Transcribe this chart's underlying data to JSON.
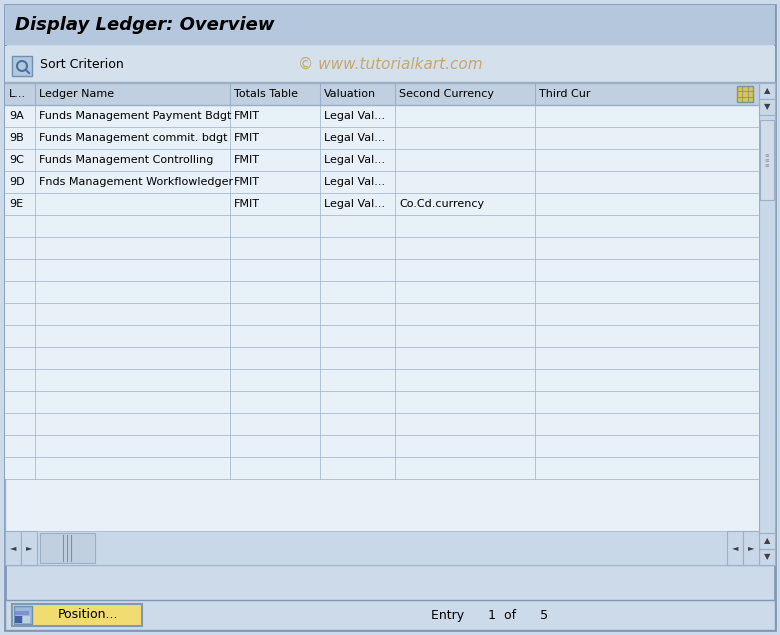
{
  "title": "Display Ledger: Overview",
  "watermark": "© www.tutorialkart.com",
  "toolbar_label": "Sort Criterion",
  "col_headers": [
    "L...",
    "Ledger Name",
    "Totals Table",
    "Valuation",
    "Second Currency",
    "Third Cur"
  ],
  "rows": [
    [
      "9A",
      "Funds Management Payment Bdgt",
      "FMIT",
      "Legal Val...",
      "",
      ""
    ],
    [
      "9B",
      "Funds Management commit. bdgt",
      "FMIT",
      "Legal Val...",
      "",
      ""
    ],
    [
      "9C",
      "Funds Management Controlling",
      "FMIT",
      "Legal Val...",
      "",
      ""
    ],
    [
      "9D",
      "Fnds Management Workflowledger",
      "FMIT",
      "Legal Val...",
      "",
      ""
    ],
    [
      "9E",
      "",
      "FMIT",
      "Legal Val...",
      "Co.Cd.currency",
      ""
    ],
    [
      "",
      "",
      "",
      "",
      "",
      ""
    ],
    [
      "",
      "",
      "",
      "",
      "",
      ""
    ],
    [
      "",
      "",
      "",
      "",
      "",
      ""
    ],
    [
      "",
      "",
      "",
      "",
      "",
      ""
    ],
    [
      "",
      "",
      "",
      "",
      "",
      ""
    ],
    [
      "",
      "",
      "",
      "",
      "",
      ""
    ],
    [
      "",
      "",
      "",
      "",
      "",
      ""
    ],
    [
      "",
      "",
      "",
      "",
      "",
      ""
    ],
    [
      "",
      "",
      "",
      "",
      "",
      ""
    ],
    [
      "",
      "",
      "",
      "",
      "",
      ""
    ],
    [
      "",
      "",
      "",
      "",
      "",
      ""
    ],
    [
      "",
      "",
      "",
      "",
      "",
      ""
    ]
  ],
  "bg_color": "#cddaea",
  "title_bar_color": "#b4c7dc",
  "toolbar_bg": "#d4e0ec",
  "table_bg": "#dce8f4",
  "table_white_bg": "#e8f0f8",
  "table_header_bg": "#c0d0e0",
  "grid_color": "#9ab0c8",
  "title_color": "#000000",
  "toolbar_text_color": "#000000",
  "watermark_color": "#c8a060",
  "status_bg": "#cddaea",
  "button_color": "#f0dc70",
  "footer_text": "Entry      1  of      5",
  "scrollbar_bg": "#c8d8e8",
  "scrollbar_thumb": "#d8e4f0",
  "outer_border_color": "#8098b8",
  "inner_border_color": "#7a90a8"
}
